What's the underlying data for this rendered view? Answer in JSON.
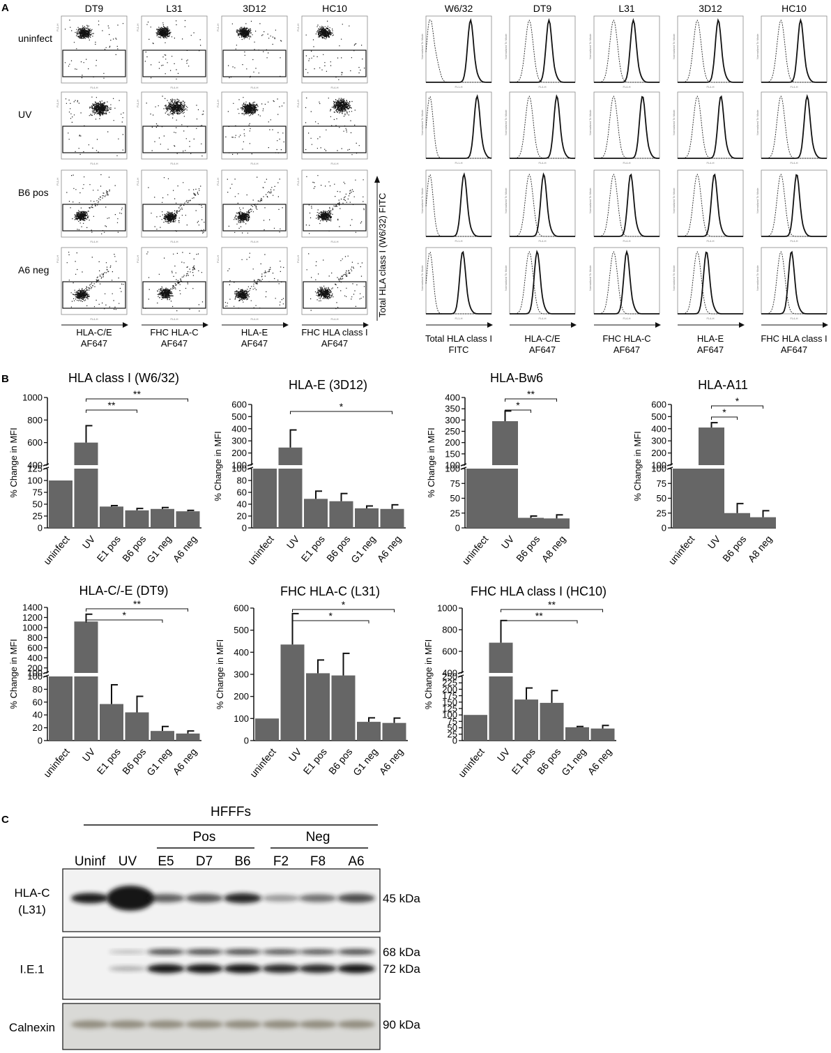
{
  "panel_letters": [
    "A",
    "B",
    "C"
  ],
  "panel_a": {
    "dot_columns": [
      "DT9",
      "L31",
      "3D12",
      "HC10"
    ],
    "rows": [
      "uninfect",
      "UV",
      "B6 pos",
      "A6 neg"
    ],
    "dot_x_axis_lines": [
      [
        "HLA-C/E",
        "AF647"
      ],
      [
        "FHC HLA-C",
        "AF647"
      ],
      [
        "HLA-E",
        "AF647"
      ],
      [
        "FHC HLA class I",
        "AF647"
      ]
    ],
    "dot_y_axis": "Total HLA class I (W6/32) FITC",
    "dot_tick_x": "FL4-H",
    "dot_tick_y": "FL1-H",
    "hist_columns": [
      "W6/32",
      "DT9",
      "L31",
      "3D12",
      "HC10"
    ],
    "hist_x_axis_lines": [
      [
        "Total HLA class I",
        "FITC"
      ],
      [
        "HLA-C/E",
        "AF647"
      ],
      [
        "FHC HLA-C",
        "AF647"
      ],
      [
        "HLA-E",
        "AF647"
      ],
      [
        "FHC HLA class I",
        "AF647"
      ]
    ],
    "hist_tick_y": "Normalized To Mode",
    "hist_tick_x": [
      "FL1-H",
      "FL4-H",
      "FL4-H",
      "FL4-H",
      "FL4-H"
    ],
    "hist_solid_peak": [
      [
        0.68,
        0.78,
        0.58,
        0.56
      ],
      [
        0.6,
        0.72,
        0.52,
        0.42
      ],
      [
        0.6,
        0.74,
        0.56,
        0.5
      ],
      [
        0.62,
        0.66,
        0.56,
        0.44
      ],
      [
        0.6,
        0.7,
        0.54,
        0.46
      ]
    ]
  },
  "chart_data": [
    {
      "type": "bar",
      "title": "HLA class I (W6/32)",
      "ylabel": "% Change in MFI",
      "categories": [
        "uninfect",
        "UV",
        "E1 pos",
        "B6 pos",
        "G1 neg",
        "A6 neg"
      ],
      "values": [
        100,
        600,
        45,
        37,
        40,
        35
      ],
      "errors": [
        0,
        150,
        2,
        4,
        3,
        2
      ],
      "axis": {
        "lower": [
          0,
          125
        ],
        "lower_ticks": [
          0,
          25,
          50,
          75,
          100,
          125
        ],
        "upper": [
          400,
          1000
        ],
        "upper_ticks": [
          400,
          600,
          800,
          1000
        ]
      },
      "significance": [
        {
          "from": "UV",
          "to": "B6 pos",
          "label": "**"
        },
        {
          "from": "UV",
          "to": "A6 neg",
          "label": "**"
        }
      ]
    },
    {
      "type": "bar",
      "title": "HLA-E (3D12)",
      "ylabel": "% Change in MFI",
      "categories": [
        "uninfect",
        "UV",
        "E1 pos",
        "B6 pos",
        "G1 neg",
        "A6 neg"
      ],
      "values": [
        100,
        245,
        49,
        45,
        33,
        32
      ],
      "errors": [
        0,
        145,
        13,
        13,
        4,
        7
      ],
      "axis": {
        "lower": [
          0,
          100
        ],
        "lower_ticks": [
          0,
          20,
          40,
          60,
          80,
          100
        ],
        "upper": [
          100,
          600
        ],
        "upper_ticks": [
          100,
          200,
          300,
          400,
          500,
          600
        ]
      },
      "significance": [
        {
          "from": "UV",
          "to": "A6 neg",
          "label": "*"
        }
      ]
    },
    {
      "type": "bar",
      "title": "HLA-Bw6",
      "ylabel": "% Change in MFI",
      "categories": [
        "uninfect",
        "UV",
        "B6 pos",
        "A8 neg"
      ],
      "values": [
        100,
        295,
        17,
        16
      ],
      "errors": [
        0,
        45,
        3,
        6
      ],
      "axis": {
        "lower": [
          0,
          100
        ],
        "lower_ticks": [
          0,
          25,
          50,
          75,
          100
        ],
        "upper": [
          100,
          400
        ],
        "upper_ticks": [
          100,
          150,
          200,
          250,
          300,
          350,
          400
        ]
      },
      "significance": [
        {
          "from": "UV",
          "to": "B6 pos",
          "label": "*"
        },
        {
          "from": "UV",
          "to": "A8 neg",
          "label": "**"
        }
      ]
    },
    {
      "type": "bar",
      "title": "HLA-A11",
      "ylabel": "% Change in MFI",
      "categories": [
        "uninfect",
        "UV",
        "B6 pos",
        "A8 neg"
      ],
      "values": [
        100,
        410,
        25,
        18
      ],
      "errors": [
        0,
        40,
        16,
        11
      ],
      "axis": {
        "lower": [
          0,
          100
        ],
        "lower_ticks": [
          0,
          25,
          50,
          75,
          100
        ],
        "upper": [
          100,
          600
        ],
        "upper_ticks": [
          100,
          200,
          300,
          400,
          500,
          600
        ]
      },
      "significance": [
        {
          "from": "UV",
          "to": "B6 pos",
          "label": "*"
        },
        {
          "from": "UV",
          "to": "A8 neg",
          "label": "*"
        }
      ]
    },
    {
      "type": "bar",
      "title": "HLA-C/-E (DT9)",
      "ylabel": "% Change in MFI",
      "categories": [
        "uninfect",
        "UV",
        "E1 pos",
        "B6 pos",
        "G1 neg",
        "A6 neg"
      ],
      "values": [
        100,
        1120,
        57,
        44,
        15,
        11
      ],
      "errors": [
        0,
        145,
        30,
        25,
        7,
        4
      ],
      "axis": {
        "lower": [
          0,
          100
        ],
        "lower_ticks": [
          0,
          20,
          40,
          60,
          80,
          100
        ],
        "upper": [
          100,
          1400
        ],
        "upper_ticks": [
          100,
          200,
          400,
          600,
          800,
          1000,
          1200,
          1400
        ]
      },
      "significance": [
        {
          "from": "UV",
          "to": "G1 neg",
          "label": "*"
        },
        {
          "from": "UV",
          "to": "A6 neg",
          "label": "**"
        }
      ]
    },
    {
      "type": "bar",
      "title": "FHC HLA-C (L31)",
      "ylabel": "% Change in MFI",
      "categories": [
        "uninfect",
        "UV",
        "E1 pos",
        "B6 pos",
        "G1 neg",
        "A6 neg"
      ],
      "values": [
        100,
        435,
        305,
        295,
        85,
        80
      ],
      "errors": [
        0,
        140,
        60,
        100,
        18,
        22
      ],
      "axis": {
        "single": [
          0,
          600
        ],
        "ticks": [
          0,
          100,
          200,
          300,
          400,
          500,
          600
        ]
      },
      "significance": [
        {
          "from": "UV",
          "to": "G1 neg",
          "label": "*"
        },
        {
          "from": "UV",
          "to": "A6 neg",
          "label": "*"
        }
      ]
    },
    {
      "type": "bar",
      "title": "FHC HLA class  I (HC10)",
      "ylabel": "% Change in MFI",
      "categories": [
        "uninfect",
        "UV",
        "E1 pos",
        "B6 pos",
        "G1 neg",
        "A6 neg"
      ],
      "values": [
        100,
        680,
        160,
        147,
        52,
        47
      ],
      "errors": [
        0,
        205,
        45,
        48,
        3,
        12
      ],
      "axis": {
        "lower": [
          0,
          250
        ],
        "lower_ticks": [
          0,
          25,
          50,
          75,
          100,
          125,
          150,
          175,
          200,
          225,
          250
        ],
        "upper": [
          400,
          1000
        ],
        "upper_ticks": [
          400,
          600,
          800,
          1000
        ]
      },
      "significance": [
        {
          "from": "UV",
          "to": "G1 neg",
          "label": "**"
        },
        {
          "from": "UV",
          "to": "A6 neg",
          "label": "**"
        }
      ]
    }
  ],
  "panel_c": {
    "group": "HFFFs",
    "pos": "Pos",
    "neg": "Neg",
    "lanes": [
      "Uninf",
      "UV",
      "E5",
      "D7",
      "B6",
      "F2",
      "F8",
      "A6"
    ],
    "blots": [
      {
        "label_lines": [
          "HLA-C",
          "(L31)"
        ],
        "sizes": [
          "45 kDa"
        ],
        "intensity": [
          0.9,
          1.0,
          0.55,
          0.6,
          0.85,
          0.25,
          0.45,
          0.65
        ]
      },
      {
        "label_lines": [
          "I.E.1"
        ],
        "sizes": [
          "68 kDa",
          "72 kDa"
        ],
        "intensity": [
          0.0,
          0.1,
          0.95,
          0.95,
          0.95,
          0.85,
          0.85,
          0.95
        ]
      },
      {
        "label_lines": [
          "Calnexin"
        ],
        "sizes": [
          "90 kDa"
        ],
        "intensity": [
          0.55,
          0.55,
          0.55,
          0.55,
          0.55,
          0.55,
          0.55,
          0.55
        ]
      }
    ]
  }
}
